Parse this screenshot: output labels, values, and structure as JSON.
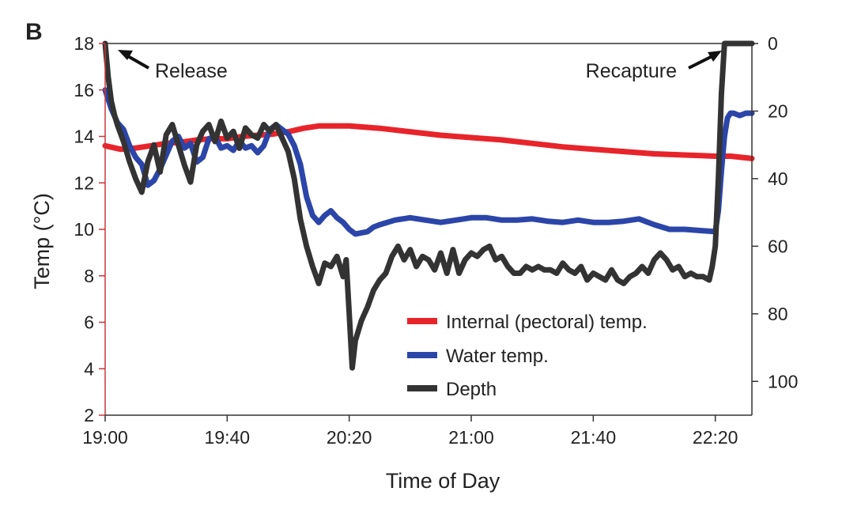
{
  "panel_label": "B",
  "chart_data": {
    "type": "line",
    "xlabel": "Time of Day",
    "ylabel": "Temp (°C)",
    "xticks": [
      "19:00",
      "19:40",
      "20:20",
      "21:00",
      "21:40",
      "22:20"
    ],
    "xlim": [
      "19:00",
      "22:32"
    ],
    "ylim": [
      2,
      18
    ],
    "yticks": [
      2,
      4,
      6,
      8,
      10,
      12,
      14,
      16,
      18
    ],
    "y2lim": [
      0,
      110
    ],
    "y2ticks": [
      0,
      20,
      40,
      60,
      80,
      100
    ],
    "y2_inverted": true,
    "grid": false,
    "legend_position": "center-bottom",
    "annotations": [
      {
        "text": "Release",
        "x": "19:00"
      },
      {
        "text": "Recapture",
        "x": "22:22"
      }
    ],
    "series": [
      {
        "name": "Internal (pectoral) temp.",
        "color": "#e8242b",
        "axis": "left",
        "x": [
          "19:00",
          "19:05",
          "19:10",
          "19:15",
          "19:20",
          "19:25",
          "19:30",
          "19:35",
          "19:40",
          "19:45",
          "19:50",
          "19:55",
          "20:00",
          "20:05",
          "20:10",
          "20:15",
          "20:20",
          "20:25",
          "20:30",
          "20:40",
          "20:50",
          "21:00",
          "21:10",
          "21:20",
          "21:30",
          "21:40",
          "21:50",
          "22:00",
          "22:10",
          "22:20",
          "22:25",
          "22:32"
        ],
        "y": [
          13.6,
          13.45,
          13.5,
          13.6,
          13.7,
          13.75,
          13.85,
          13.9,
          13.9,
          14.0,
          14.05,
          14.1,
          14.2,
          14.35,
          14.45,
          14.45,
          14.45,
          14.4,
          14.35,
          14.2,
          14.05,
          13.95,
          13.85,
          13.7,
          13.55,
          13.45,
          13.35,
          13.25,
          13.2,
          13.15,
          13.15,
          13.05
        ]
      },
      {
        "name": "Water temp.",
        "color": "#2b45a8",
        "axis": "left",
        "x": [
          "19:00",
          "19:02",
          "19:04",
          "19:06",
          "19:08",
          "19:10",
          "19:12",
          "19:14",
          "19:16",
          "19:18",
          "19:20",
          "19:22",
          "19:24",
          "19:26",
          "19:28",
          "19:30",
          "19:32",
          "19:34",
          "19:36",
          "19:38",
          "19:40",
          "19:42",
          "19:44",
          "19:46",
          "19:48",
          "19:50",
          "19:52",
          "19:54",
          "19:56",
          "19:58",
          "20:00",
          "20:02",
          "20:04",
          "20:06",
          "20:08",
          "20:10",
          "20:12",
          "20:14",
          "20:16",
          "20:18",
          "20:20",
          "20:22",
          "20:24",
          "20:26",
          "20:28",
          "20:30",
          "20:35",
          "20:40",
          "20:45",
          "20:50",
          "20:55",
          "21:00",
          "21:05",
          "21:10",
          "21:15",
          "21:20",
          "21:25",
          "21:30",
          "21:35",
          "21:40",
          "21:45",
          "21:50",
          "21:55",
          "22:00",
          "22:05",
          "22:10",
          "22:15",
          "22:20",
          "22:21",
          "22:22",
          "22:23",
          "22:24",
          "22:25",
          "22:26",
          "22:28",
          "22:30",
          "22:32"
        ],
        "y": [
          16.0,
          15.2,
          14.6,
          14.3,
          13.6,
          13.1,
          12.8,
          11.9,
          12.1,
          12.6,
          13.2,
          13.8,
          14.0,
          13.5,
          13.7,
          12.9,
          13.1,
          13.9,
          14.0,
          13.5,
          13.6,
          13.4,
          13.8,
          13.5,
          13.6,
          13.3,
          13.6,
          14.3,
          14.5,
          14.3,
          14.1,
          13.6,
          12.8,
          11.4,
          10.6,
          10.3,
          10.6,
          10.8,
          10.5,
          10.3,
          10.0,
          9.8,
          9.85,
          9.9,
          10.1,
          10.2,
          10.4,
          10.5,
          10.4,
          10.3,
          10.4,
          10.5,
          10.5,
          10.4,
          10.4,
          10.45,
          10.35,
          10.3,
          10.4,
          10.3,
          10.3,
          10.35,
          10.45,
          10.2,
          10.0,
          10.0,
          9.95,
          9.9,
          10.8,
          12.5,
          14.0,
          14.8,
          15.0,
          15.0,
          14.9,
          15.0,
          15.0
        ]
      },
      {
        "name": "Depth",
        "color": "#333333",
        "axis": "right",
        "x": [
          "19:00",
          "19:01",
          "19:02",
          "19:03",
          "19:04",
          "19:06",
          "19:08",
          "19:10",
          "19:12",
          "19:14",
          "19:16",
          "19:18",
          "19:20",
          "19:22",
          "19:24",
          "19:26",
          "19:28",
          "19:30",
          "19:32",
          "19:34",
          "19:36",
          "19:38",
          "19:40",
          "19:42",
          "19:44",
          "19:46",
          "19:48",
          "19:50",
          "19:52",
          "19:54",
          "19:56",
          "19:58",
          "20:00",
          "20:02",
          "20:04",
          "20:06",
          "20:08",
          "20:10",
          "20:12",
          "20:14",
          "20:16",
          "20:18",
          "20:19",
          "20:20",
          "20:21",
          "20:22",
          "20:24",
          "20:26",
          "20:28",
          "20:30",
          "20:32",
          "20:34",
          "20:36",
          "20:38",
          "20:40",
          "20:42",
          "20:44",
          "20:46",
          "20:48",
          "20:50",
          "20:52",
          "20:54",
          "20:56",
          "20:58",
          "21:00",
          "21:02",
          "21:04",
          "21:06",
          "21:08",
          "21:10",
          "21:12",
          "21:14",
          "21:16",
          "21:18",
          "21:20",
          "21:22",
          "21:24",
          "21:26",
          "21:28",
          "21:30",
          "21:32",
          "21:34",
          "21:36",
          "21:38",
          "21:40",
          "21:42",
          "21:44",
          "21:46",
          "21:48",
          "21:50",
          "21:52",
          "21:54",
          "21:56",
          "21:58",
          "22:00",
          "22:02",
          "22:04",
          "22:06",
          "22:08",
          "22:10",
          "22:12",
          "22:14",
          "22:16",
          "22:18",
          "22:19",
          "22:20",
          "22:21",
          "22:22",
          "22:23",
          "22:24",
          "22:25",
          "22:27",
          "22:30",
          "22:32"
        ],
        "y": [
          0,
          10,
          17,
          21,
          24,
          29,
          35,
          40,
          44,
          35,
          30,
          38,
          27,
          24,
          30,
          36,
          41,
          30,
          26,
          24,
          29,
          23,
          28,
          26,
          31,
          25,
          27,
          28,
          24,
          26,
          24,
          28,
          32,
          40,
          52,
          60,
          66,
          71,
          65,
          66,
          63,
          69,
          64,
          80,
          96,
          88,
          82,
          78,
          73,
          70,
          68,
          63,
          60,
          64,
          61,
          66,
          63,
          64,
          67,
          62,
          68,
          61,
          68,
          64,
          62,
          63,
          61,
          60,
          64,
          63,
          66,
          68,
          68,
          66,
          67,
          66,
          67,
          67,
          68,
          65,
          67,
          68,
          66,
          70,
          68,
          69,
          70,
          67,
          70,
          71,
          69,
          68,
          66,
          68,
          64,
          62,
          64,
          67,
          66,
          69,
          68,
          69,
          69,
          70,
          66,
          60,
          40,
          15,
          0,
          0,
          0,
          0,
          0,
          0
        ]
      }
    ]
  }
}
